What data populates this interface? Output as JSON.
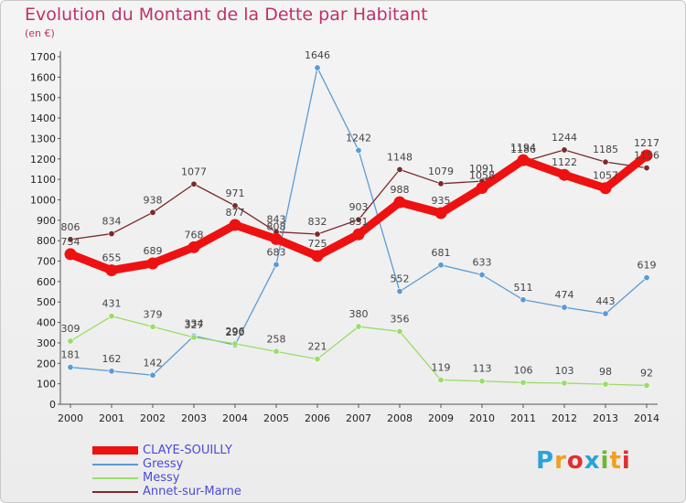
{
  "chart_data": {
    "type": "line",
    "title": "Evolution du Montant de la Dette par Habitant",
    "subtitle": "(en €)",
    "x": [
      "2000",
      "2001",
      "2002",
      "2003",
      "2004",
      "2005",
      "2006",
      "2007",
      "2008",
      "2009",
      "2010",
      "2011",
      "2012",
      "2013",
      "2014"
    ],
    "yticks": [
      0,
      100,
      200,
      300,
      400,
      500,
      600,
      700,
      800,
      900,
      1000,
      1100,
      1200,
      1300,
      1400,
      1500,
      1600,
      1700
    ],
    "ylim": [
      0,
      1700
    ],
    "grid": false,
    "legend_position": "bottom-left",
    "series": [
      {
        "name": "CLAYE-SOUILLY",
        "color": "#ee1111",
        "values": [
          734,
          655,
          689,
          768,
          877,
          808,
          725,
          831,
          988,
          935,
          1058,
          1194,
          1122,
          1057,
          1217
        ]
      },
      {
        "name": "Gressy",
        "color": "#5b9bd5",
        "values": [
          181,
          162,
          142,
          334,
          290,
          683,
          1646,
          1242,
          552,
          681,
          633,
          511,
          474,
          443,
          619
        ]
      },
      {
        "name": "Messy",
        "color": "#99dd66",
        "values": [
          309,
          431,
          379,
          327,
          296,
          258,
          221,
          380,
          356,
          119,
          113,
          106,
          103,
          98,
          92
        ]
      },
      {
        "name": "Annet-sur-Marne",
        "color": "#7a2a2a",
        "values": [
          806,
          834,
          938,
          1077,
          971,
          843,
          832,
          903,
          1148,
          1079,
          1091,
          1186,
          1244,
          1185,
          1156
        ]
      }
    ]
  },
  "brand": {
    "text": "Proxiti",
    "letters": [
      "P",
      "r",
      "o",
      "x",
      "i",
      "t",
      "i"
    ],
    "colors": [
      "#2aa3d8",
      "#f0a020",
      "#e03030",
      "#2aa3d8",
      "#70b830",
      "#f0a020",
      "#e03030"
    ]
  }
}
